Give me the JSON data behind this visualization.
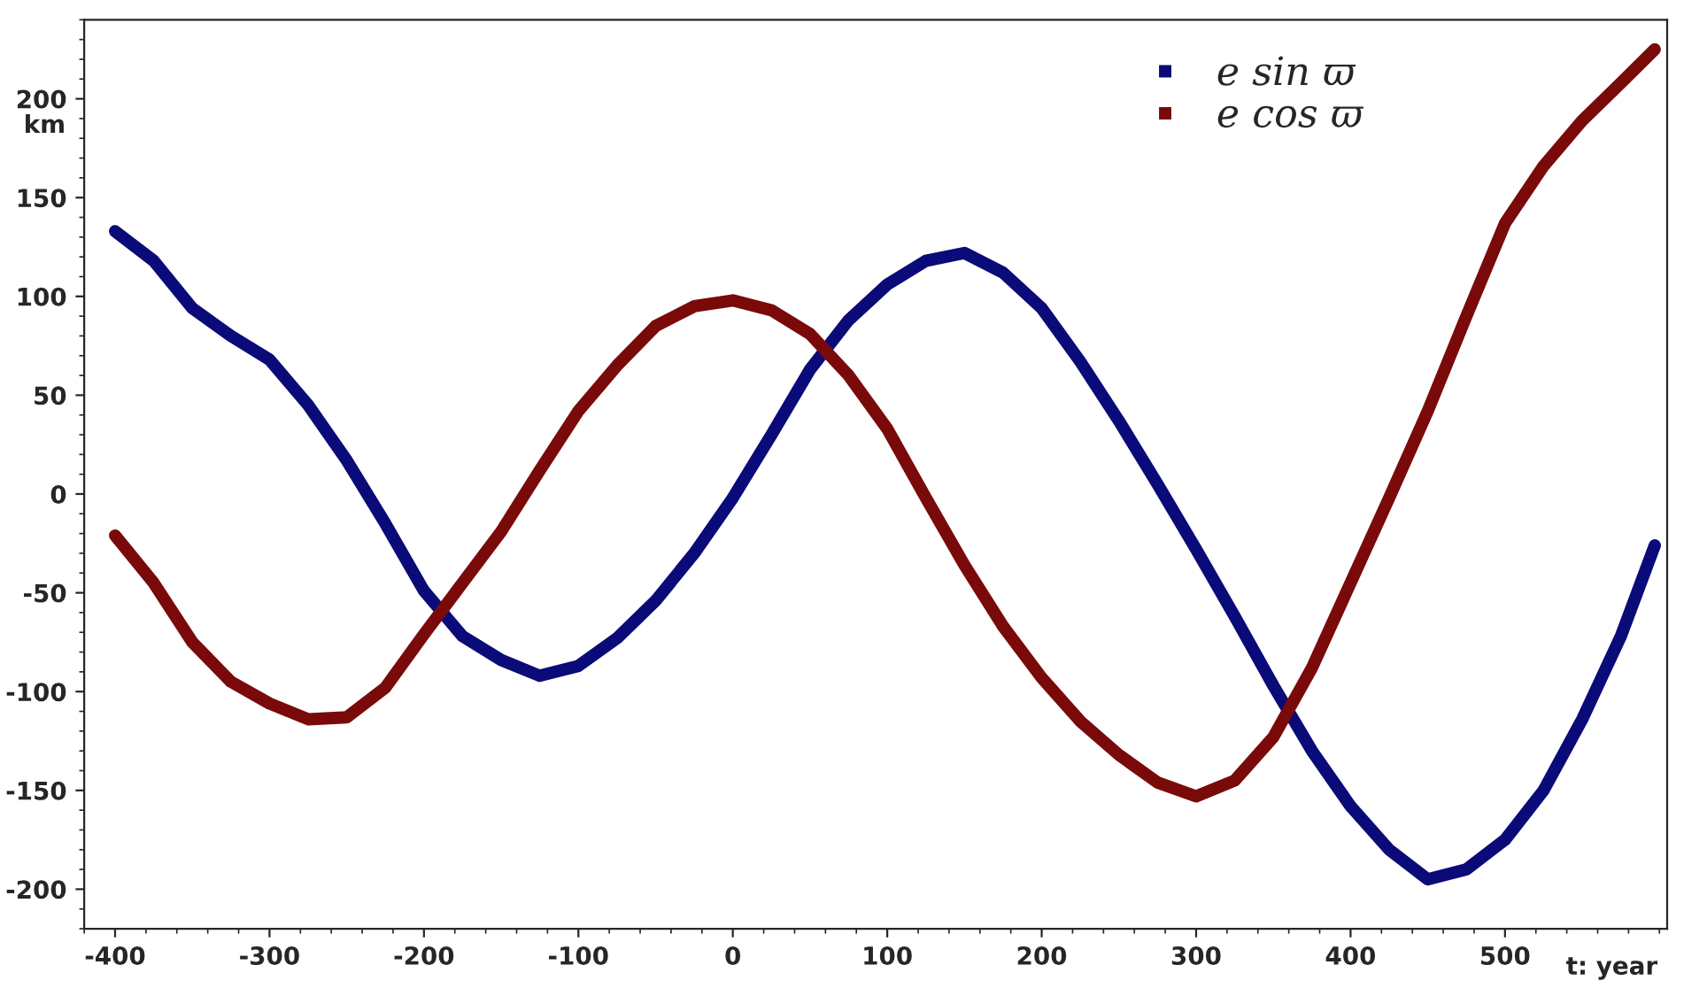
{
  "chart_data": {
    "type": "line",
    "xlabel": "t: year",
    "ylabel": "km",
    "x": [
      -400,
      -375,
      -350,
      -325,
      -300,
      -275,
      -250,
      -225,
      -200,
      -175,
      -150,
      -125,
      -100,
      -75,
      -50,
      -25,
      0,
      25,
      50,
      75,
      100,
      125,
      150,
      175,
      200,
      225,
      250,
      275,
      300,
      325,
      350,
      375,
      400,
      425,
      450,
      475,
      500,
      525,
      550,
      575,
      597
    ],
    "series": [
      {
        "name": "e sin ϖ",
        "color": "#0a0a78",
        "values": [
          133,
          118,
          94,
          80,
          68,
          45,
          17,
          -15,
          -49,
          -72,
          -84,
          -92,
          -87,
          -73,
          -54,
          -30,
          -2,
          30,
          63,
          88,
          106,
          118,
          122,
          112,
          94,
          67,
          37,
          5,
          -28,
          -62,
          -97,
          -130,
          -158,
          -180,
          -195,
          -190,
          -175,
          -150,
          -114,
          -72,
          -26
        ]
      },
      {
        "name": "e cos ϖ",
        "color": "#7a0a0a",
        "values": [
          -21,
          -45,
          -75,
          -95,
          -106,
          -114,
          -113,
          -98,
          -71,
          -45,
          -19,
          12,
          42,
          65,
          85,
          95,
          98,
          93,
          81,
          60,
          33,
          -2,
          -36,
          -67,
          -93,
          -115,
          -132,
          -146,
          -153,
          -145,
          -123,
          -88,
          -45,
          -2,
          42,
          90,
          137,
          166,
          189,
          208,
          225
        ]
      }
    ],
    "xlim": [
      -420,
      605
    ],
    "ylim": [
      -220,
      240
    ],
    "xticks": [
      -400,
      -300,
      -200,
      -100,
      0,
      100,
      200,
      300,
      400,
      500
    ],
    "yticks": [
      -200,
      -150,
      -100,
      -50,
      0,
      50,
      100,
      150,
      200
    ],
    "grid": false,
    "legend": "top right",
    "marker": "none",
    "line_style": "solid"
  }
}
